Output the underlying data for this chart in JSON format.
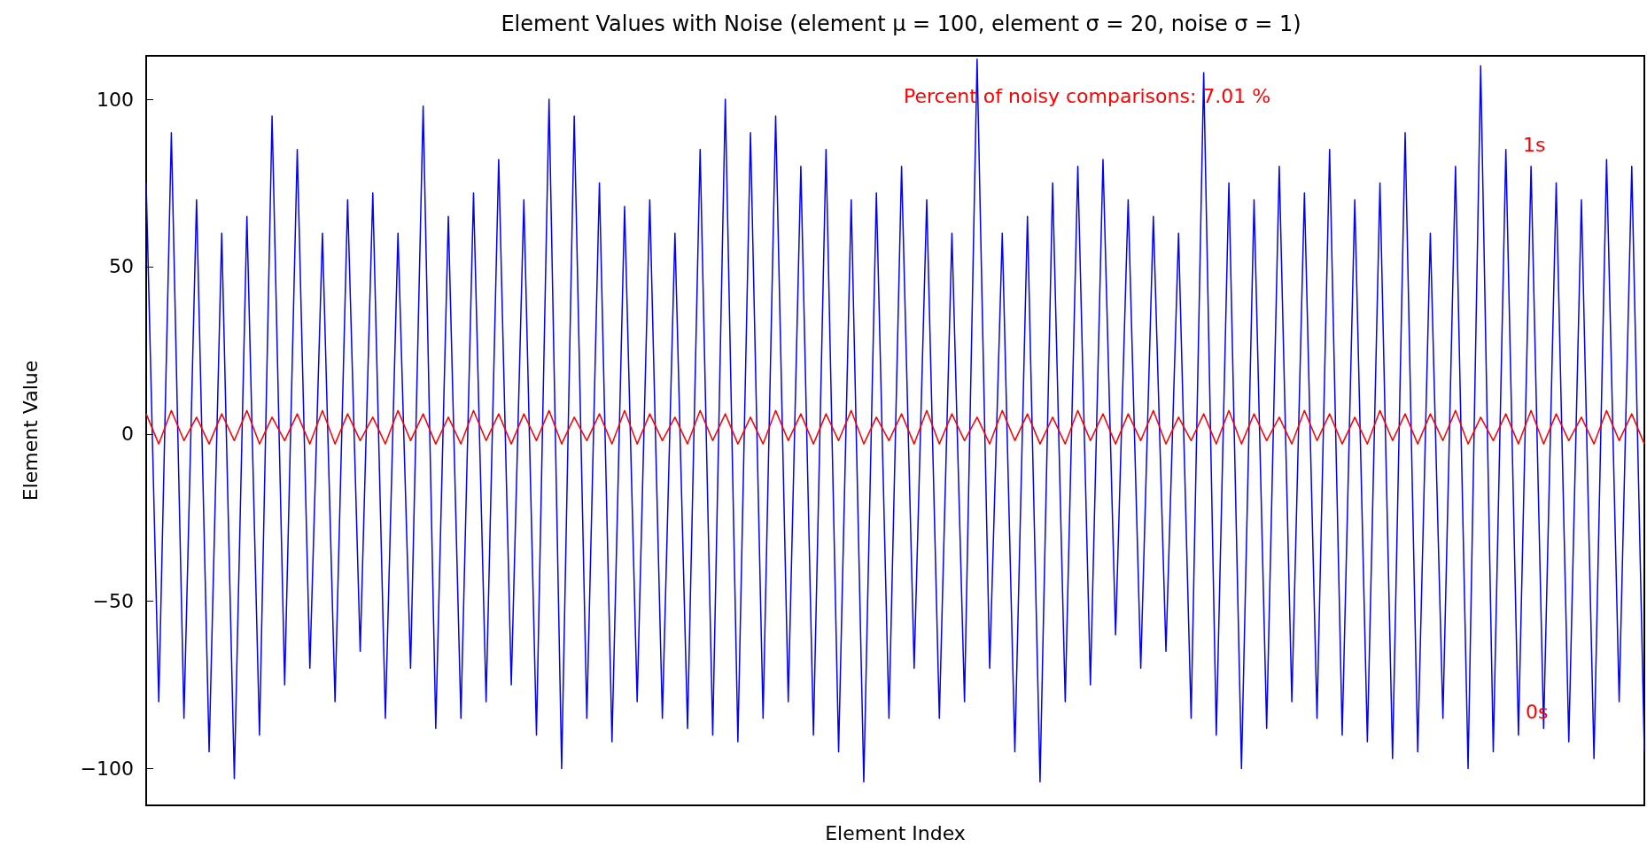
{
  "chart_data": {
    "type": "line",
    "title": "Element Values with Noise (element μ = 100, element σ = 20, noise σ = 1)",
    "xlabel": "Element Index",
    "ylabel": "Element Value",
    "annotations": [
      "Percent of noisy comparisons: 7.01 %",
      "1s",
      "0s"
    ],
    "categories": [
      null,
      null,
      null,
      null,
      null,
      null,
      null,
      null,
      null,
      null,
      null,
      null,
      null,
      null,
      null,
      null,
      null,
      null,
      null,
      null,
      null,
      null,
      null,
      null,
      null,
      null,
      null,
      null,
      null,
      null,
      null,
      null,
      null,
      null,
      null,
      null,
      null,
      null,
      null,
      null,
      null,
      null,
      null,
      null,
      null,
      null,
      null,
      null,
      null,
      null,
      null,
      null,
      null,
      null,
      null,
      null,
      null,
      null,
      null,
      null,
      null,
      null,
      null,
      null,
      null,
      null,
      null,
      null,
      null,
      null,
      null,
      null,
      null,
      null,
      null,
      null,
      null,
      null,
      null,
      null,
      null,
      null,
      null,
      null,
      null,
      null,
      null,
      null,
      null,
      null,
      null,
      null,
      null,
      null,
      null,
      null,
      null,
      null,
      null,
      null,
      null,
      null,
      null,
      null,
      null,
      null,
      null,
      null,
      null,
      null,
      null,
      null,
      null,
      null,
      null,
      null,
      null,
      null,
      null,
      null
    ],
    "series": [
      {
        "color": "#0000ff",
        "values": [
          75,
          -80,
          90,
          -85,
          70,
          -95,
          60,
          -103,
          65,
          -90,
          95,
          -75,
          85,
          -70,
          60,
          -80,
          70,
          -65,
          72,
          -85,
          60,
          -70,
          98,
          -88,
          65,
          -85,
          72,
          -80,
          82,
          -75,
          70,
          -90,
          100,
          -100,
          95,
          -85,
          75,
          -92,
          68,
          -80,
          70,
          -85,
          60,
          -88,
          85,
          -90,
          100,
          -92,
          90,
          -85,
          95,
          -80,
          80,
          -90,
          85,
          -95,
          70,
          -104,
          72,
          -85,
          80,
          -70,
          70,
          -85,
          60,
          -80,
          112,
          -70,
          60,
          -95,
          65,
          -104,
          75,
          -80,
          80,
          -75,
          82,
          -60,
          70,
          -70,
          65,
          -65,
          60,
          -85,
          108,
          -90,
          75,
          -100,
          70,
          -88,
          80,
          -80,
          72,
          -85,
          85,
          -90,
          70,
          -92,
          75,
          -97,
          90,
          -95,
          60,
          -85,
          80,
          -100,
          110,
          -95,
          85,
          -90,
          80,
          -88,
          75,
          -92,
          70,
          -97,
          82,
          -80,
          80,
          -95
        ]
      },
      {
        "color": "#ff0000",
        "values": [
          6,
          -3,
          7,
          -2,
          5,
          -3,
          6,
          -2,
          7,
          -3,
          5,
          -2,
          6,
          -3,
          7,
          -3,
          6,
          -2,
          5,
          -3,
          7,
          -2,
          6,
          -3,
          5,
          -3,
          7,
          -2,
          6,
          -3,
          6,
          -2,
          7,
          -3,
          5,
          -2,
          6,
          -3,
          7,
          -3,
          6,
          -2,
          5,
          -3,
          7,
          -2,
          6,
          -3,
          5,
          -3,
          7,
          -2,
          6,
          -3,
          6,
          -2,
          7,
          -3,
          5,
          -2,
          6,
          -3,
          7,
          -3,
          6,
          -2,
          5,
          -3,
          7,
          -2,
          6,
          -3,
          5,
          -3,
          7,
          -2,
          6,
          -3,
          6,
          -2,
          7,
          -3,
          5,
          -2,
          6,
          -3,
          7,
          -3,
          6,
          -2,
          5,
          -3,
          7,
          -2,
          6,
          -3,
          5,
          -3,
          7,
          -2,
          6,
          -3,
          6,
          -2,
          7,
          -3,
          5,
          -2,
          6,
          -3,
          7,
          -3,
          6,
          -2,
          5,
          -3,
          7,
          -2,
          6,
          -3
        ]
      }
    ],
    "ylim": [
      -111,
      113
    ],
    "yticks": [
      -100,
      -50,
      0,
      50,
      100
    ],
    "grid": false,
    "marker": "none",
    "line_style": "solid"
  }
}
